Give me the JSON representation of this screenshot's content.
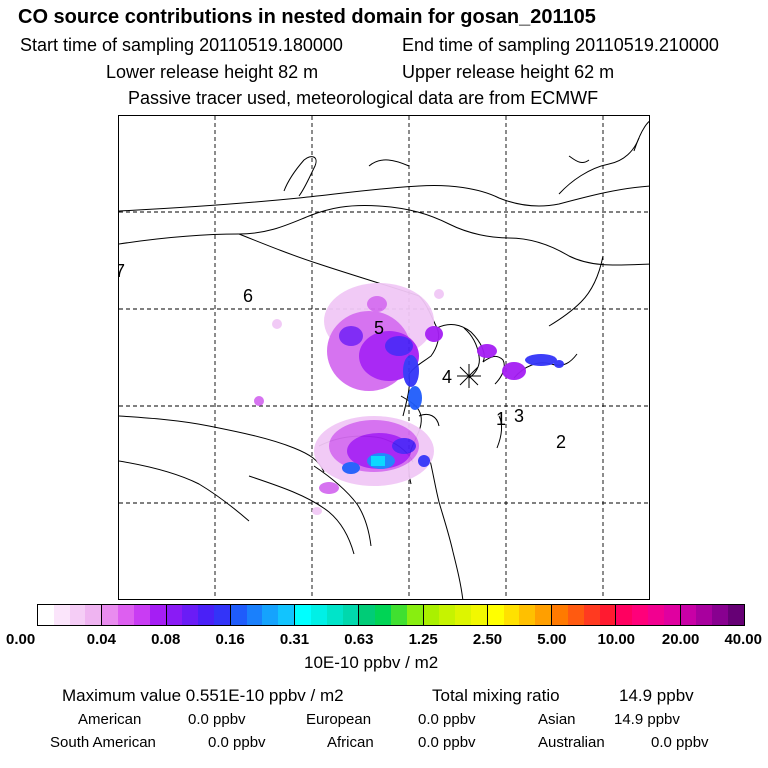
{
  "title": "CO  source contributions in nested domain for gosan_201105",
  "header": {
    "start_time": "Start time of sampling 20110519.180000",
    "end_time": "End time of sampling 20110519.210000",
    "lower_release": "Lower release height   82 m",
    "upper_release": "Upper release height   62 m",
    "tracer_note": "Passive tracer used, meteorological data are from ECMWF"
  },
  "map": {
    "region_labels": [
      "1",
      "2",
      "3",
      "4",
      "5",
      "6",
      "7"
    ],
    "receptor_marker": "asterisk",
    "grid": "dashed"
  },
  "colorbar": {
    "ticks": [
      "0.00",
      "0.04",
      "0.08",
      "0.16",
      "0.31",
      "0.63",
      "1.25",
      "2.50",
      "5.00",
      "10.00",
      "20.00",
      "40.00"
    ],
    "units": "10E-10 ppbv / m2",
    "segment_colors": [
      [
        "#ffffff",
        "#fbe5fb",
        "#f5cdf6",
        "#efb4f1"
      ],
      [
        "#e98cef",
        "#dd5ff0",
        "#c93cf3",
        "#a51ef4"
      ],
      [
        "#8a1bf5",
        "#6a1cf6",
        "#4a20f7",
        "#3334f8"
      ],
      [
        "#1f5cfb",
        "#1a80fc",
        "#15a3fd",
        "#12c4fe"
      ],
      [
        "#00ffff",
        "#00f0e6",
        "#00e4c9",
        "#00d8ad"
      ],
      [
        "#00cc77",
        "#00d455",
        "#40e030",
        "#88ee10"
      ],
      [
        "#aaf000",
        "#c6f300",
        "#ddf500",
        "#f2f800"
      ],
      [
        "#ffff00",
        "#ffe100",
        "#ffc000",
        "#ff9f00"
      ],
      [
        "#ff7a00",
        "#ff5a10",
        "#ff3a20",
        "#ff1a30"
      ],
      [
        "#ff0060",
        "#ff007a",
        "#f20090",
        "#e000a0"
      ],
      [
        "#c800a6",
        "#a8009e",
        "#880090",
        "#660075"
      ]
    ]
  },
  "stats": {
    "max_value": "Maximum value  0.551E-10 ppbv / m2",
    "total_label": "Total mixing ratio",
    "total_value": "14.9 ppbv",
    "regions": [
      {
        "name": "American",
        "value": "0.0 ppbv"
      },
      {
        "name": "European",
        "value": "0.0 ppbv"
      },
      {
        "name": "Asian",
        "value": "14.9 ppbv"
      },
      {
        "name": "South American",
        "value": "0.0 ppbv"
      },
      {
        "name": "African",
        "value": "0.0 ppbv"
      },
      {
        "name": "Australian",
        "value": "0.0 ppbv"
      }
    ]
  }
}
